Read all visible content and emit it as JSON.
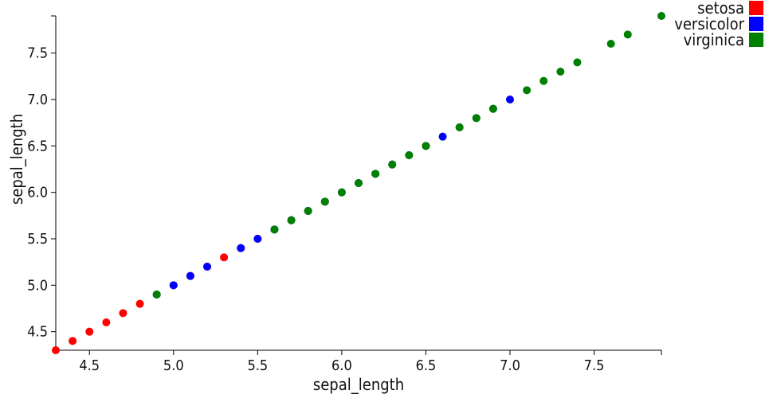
{
  "chart_data": {
    "type": "scatter",
    "xlabel": "sepal_length",
    "ylabel": "sepal_length",
    "xlim": [
      4.3,
      7.9
    ],
    "ylim": [
      4.3,
      7.9
    ],
    "xticks": [
      "4.5",
      "5.0",
      "5.5",
      "6.0",
      "6.5",
      "7.0",
      "7.5"
    ],
    "yticks": [
      "4.5",
      "5.0",
      "5.5",
      "6.0",
      "6.5",
      "7.0",
      "7.5"
    ],
    "legend_position": "top-right",
    "series": [
      {
        "name": "setosa",
        "color": "#ff0000",
        "points": [
          [
            4.3,
            4.3
          ],
          [
            4.4,
            4.4
          ],
          [
            4.5,
            4.5
          ],
          [
            4.6,
            4.6
          ],
          [
            4.7,
            4.7
          ],
          [
            4.8,
            4.8
          ],
          [
            4.9,
            4.9
          ],
          [
            5.0,
            5.0
          ],
          [
            5.1,
            5.1
          ],
          [
            5.2,
            5.2
          ],
          [
            5.3,
            5.3
          ],
          [
            5.4,
            5.4
          ],
          [
            5.5,
            5.5
          ],
          [
            5.7,
            5.7
          ],
          [
            5.8,
            5.8
          ]
        ]
      },
      {
        "name": "versicolor",
        "color": "#0000ff",
        "points": [
          [
            4.9,
            4.9
          ],
          [
            5.0,
            5.0
          ],
          [
            5.1,
            5.1
          ],
          [
            5.2,
            5.2
          ],
          [
            5.4,
            5.4
          ],
          [
            5.5,
            5.5
          ],
          [
            5.6,
            5.6
          ],
          [
            5.7,
            5.7
          ],
          [
            5.8,
            5.8
          ],
          [
            5.9,
            5.9
          ],
          [
            6.0,
            6.0
          ],
          [
            6.1,
            6.1
          ],
          [
            6.2,
            6.2
          ],
          [
            6.3,
            6.3
          ],
          [
            6.4,
            6.4
          ],
          [
            6.5,
            6.5
          ],
          [
            6.6,
            6.6
          ],
          [
            6.7,
            6.7
          ],
          [
            6.8,
            6.8
          ],
          [
            6.9,
            6.9
          ],
          [
            7.0,
            7.0
          ]
        ]
      },
      {
        "name": "virginica",
        "color": "#008000",
        "points": [
          [
            4.9,
            4.9
          ],
          [
            5.6,
            5.6
          ],
          [
            5.7,
            5.7
          ],
          [
            5.8,
            5.8
          ],
          [
            5.9,
            5.9
          ],
          [
            6.0,
            6.0
          ],
          [
            6.1,
            6.1
          ],
          [
            6.2,
            6.2
          ],
          [
            6.3,
            6.3
          ],
          [
            6.4,
            6.4
          ],
          [
            6.5,
            6.5
          ],
          [
            6.7,
            6.7
          ],
          [
            6.8,
            6.8
          ],
          [
            6.9,
            6.9
          ],
          [
            7.1,
            7.1
          ],
          [
            7.2,
            7.2
          ],
          [
            7.3,
            7.3
          ],
          [
            7.4,
            7.4
          ],
          [
            7.6,
            7.6
          ],
          [
            7.7,
            7.7
          ],
          [
            7.9,
            7.9
          ]
        ]
      }
    ]
  }
}
